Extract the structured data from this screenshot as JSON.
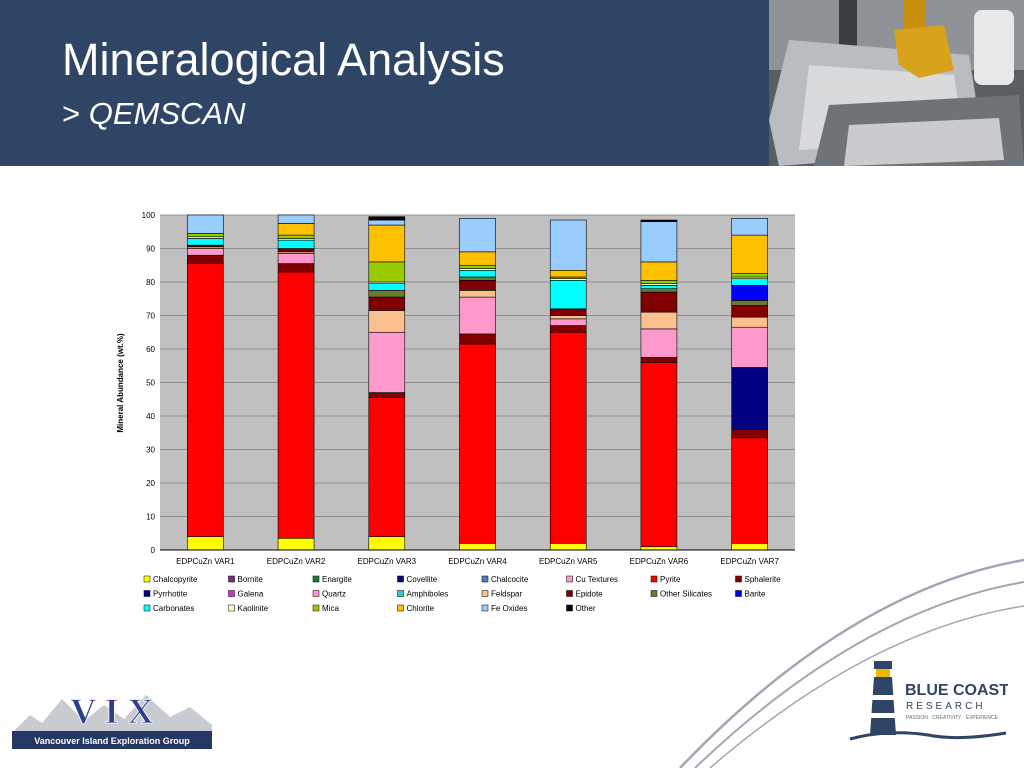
{
  "header": {
    "title": "Mineralogical Analysis",
    "subtitle_prefix": "> ",
    "subtitle": "QEMSCAN"
  },
  "colors": {
    "header_bg": "#2f4565",
    "footer_curve": "#9ea7b3"
  },
  "logos": {
    "vix_letters": "V I X",
    "vix_caption": "Vancouver Island Exploration Group",
    "bcr_name": "BLUE COAST",
    "bcr_sub": "RESEARCH",
    "bcr_tagline": "PASSION · CREATIVITY · EXPERIENCE"
  },
  "chart_data": {
    "type": "bar",
    "stacked": true,
    "title": "",
    "xlabel": "",
    "ylabel": "Mineral Abundance (wt.%)",
    "ylim": [
      0,
      100
    ],
    "yticks": [
      0,
      10,
      20,
      30,
      40,
      50,
      60,
      70,
      80,
      90,
      100
    ],
    "grid": true,
    "legend_position": "bottom",
    "categories": [
      "EDPCuZn VAR1",
      "EDPCuZn VAR2",
      "EDPCuZn VAR3",
      "EDPCuZn VAR4",
      "EDPCuZn VAR5",
      "EDPCuZn VAR6",
      "EDPCuZn VAR7"
    ],
    "series": [
      {
        "name": "Chalcopyrite",
        "color": "#ffff00",
        "values": [
          4,
          3.5,
          4,
          2,
          2,
          1,
          2
        ]
      },
      {
        "name": "Bornite",
        "color": "#7f2a7f",
        "values": [
          0,
          0,
          0,
          0,
          0,
          0,
          0
        ]
      },
      {
        "name": "Enargite",
        "color": "#1e7a3a",
        "values": [
          0,
          0,
          0,
          0,
          0,
          0,
          0
        ]
      },
      {
        "name": "Covellite",
        "color": "#00007f",
        "values": [
          0,
          0,
          0,
          0,
          0,
          0,
          0
        ]
      },
      {
        "name": "Chalcocite",
        "color": "#4f81bd",
        "values": [
          0,
          0,
          0,
          0,
          0,
          0,
          0
        ]
      },
      {
        "name": "Cu Textures",
        "color": "#ff99cc",
        "values": [
          0,
          0,
          0,
          0,
          0,
          0,
          0
        ]
      },
      {
        "name": "Pyrite",
        "color": "#ff0000",
        "values": [
          81.5,
          79.5,
          41.5,
          59.5,
          63,
          55,
          31.5
        ]
      },
      {
        "name": "Sphalerite",
        "color": "#800000",
        "values": [
          2.5,
          2.5,
          1.5,
          3,
          2,
          1.5,
          2.5
        ]
      },
      {
        "name": "Pyrrhotite",
        "color": "#000080",
        "values": [
          0,
          0,
          0,
          0,
          0,
          0,
          18.5
        ]
      },
      {
        "name": "Galena",
        "color": "#cc33cc",
        "values": [
          0,
          0,
          0,
          0,
          0,
          0,
          0
        ]
      },
      {
        "name": "Quartz",
        "color": "#ff99cc",
        "values": [
          2,
          3,
          18,
          11,
          2,
          8.5,
          12
        ]
      },
      {
        "name": "Amphiboles",
        "color": "#33cccc",
        "values": [
          0,
          0,
          0,
          0,
          0,
          0,
          0
        ]
      },
      {
        "name": "Feldspar",
        "color": "#fac090",
        "values": [
          0.5,
          0.5,
          6.5,
          2,
          1,
          5,
          3
        ]
      },
      {
        "name": "Epidote",
        "color": "#800000",
        "values": [
          0.5,
          1,
          4,
          3,
          2,
          6,
          3.5
        ]
      },
      {
        "name": "Other Silicates",
        "color": "#6b7a2e",
        "values": [
          0,
          0,
          2,
          1,
          0,
          1,
          1.5
        ]
      },
      {
        "name": "Barite",
        "color": "#0000ff",
        "values": [
          0,
          0,
          0,
          0,
          0,
          0,
          4.5
        ]
      },
      {
        "name": "Carbonates",
        "color": "#00ffff",
        "values": [
          2,
          2.5,
          2,
          2,
          8.5,
          1,
          2
        ]
      },
      {
        "name": "Kaolinite",
        "color": "#ffffcc",
        "values": [
          0.5,
          0.5,
          0.5,
          0.5,
          0.5,
          0.5,
          0.5
        ]
      },
      {
        "name": "Mica",
        "color": "#99cc00",
        "values": [
          1,
          1,
          6,
          1,
          0.5,
          1,
          1
        ]
      },
      {
        "name": "Chlorite",
        "color": "#ffc000",
        "values": [
          0,
          3.5,
          11,
          4,
          2,
          5.5,
          11.5
        ]
      },
      {
        "name": "Fe Oxides",
        "color": "#99ccff",
        "values": [
          5.5,
          2.5,
          1.5,
          10,
          15,
          12,
          5
        ]
      },
      {
        "name": "Other",
        "color": "#000000",
        "values": [
          0,
          0,
          1,
          0,
          0,
          0.5,
          0
        ]
      }
    ]
  }
}
